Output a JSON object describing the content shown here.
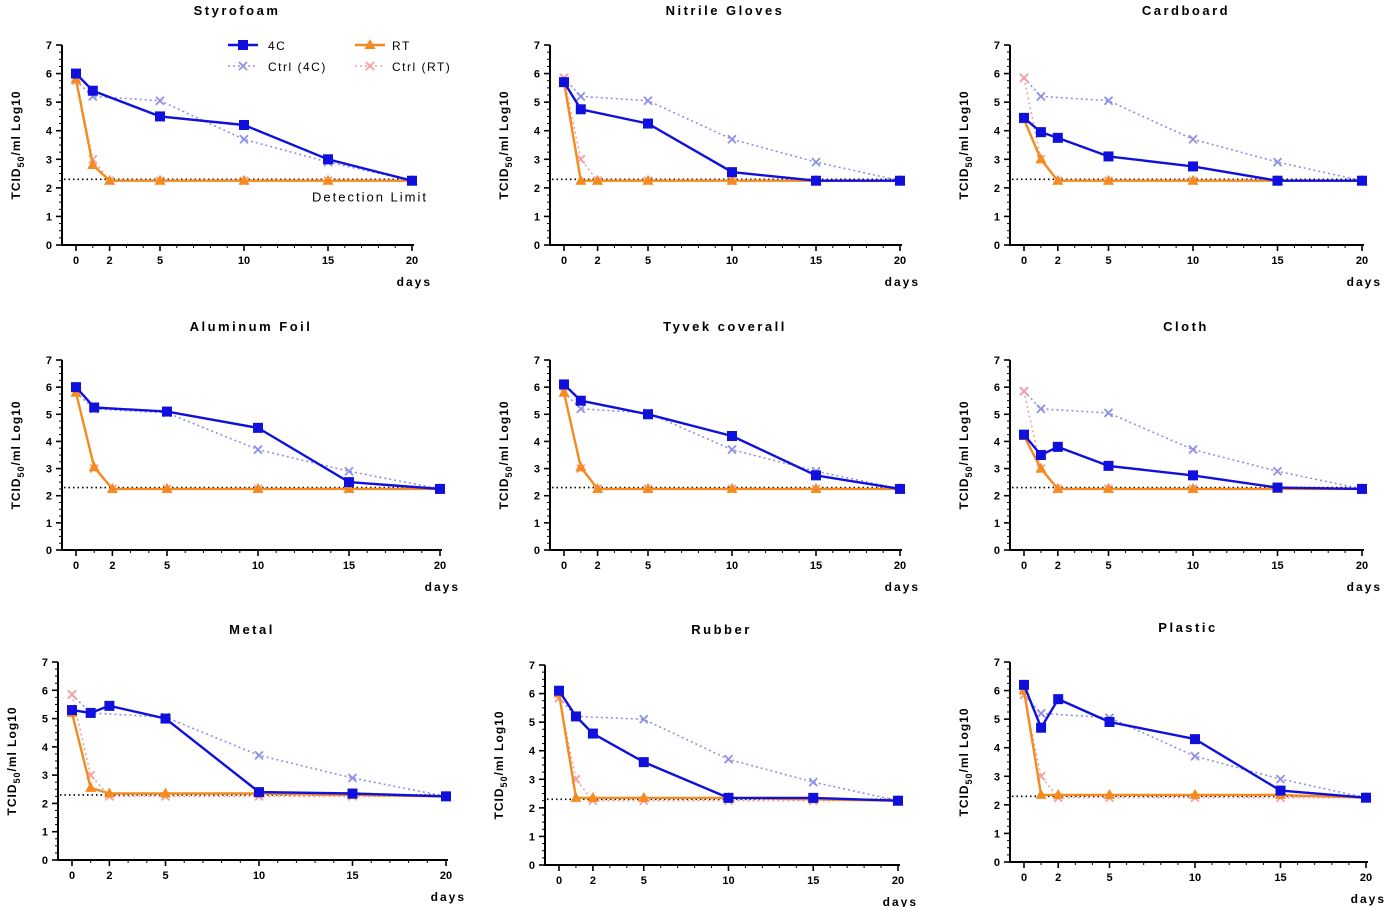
{
  "colors": {
    "c4": "#1010dd",
    "rt": "#f58a1f",
    "ctrl4": "#9090e8",
    "ctrlrt": "#f4a0a0"
  },
  "legend": {
    "c4": "4C",
    "rt": "RT",
    "ctrl4": "Ctrl (4C)",
    "ctrlrt": "Ctrl (RT)"
  },
  "annotation": "Detection Limit",
  "chart_data": [
    {
      "type": "line",
      "title": "Styrofoam",
      "xlabel": "days",
      "ylabel": "TCID50/ml Log10",
      "x": [
        0,
        1,
        2,
        5,
        10,
        15,
        20
      ],
      "ylim": [
        0,
        7
      ],
      "xlim": [
        0,
        20
      ],
      "detection_limit": 2.3,
      "series": [
        {
          "name": "4C",
          "values": [
            6.0,
            5.4,
            null,
            4.5,
            4.2,
            3.0,
            2.25
          ]
        },
        {
          "name": "RT",
          "values": [
            5.8,
            2.8,
            2.25,
            2.25,
            2.25,
            2.25,
            2.25
          ]
        },
        {
          "name": "Ctrl (4C)",
          "values": [
            5.75,
            5.2,
            null,
            5.05,
            3.7,
            2.9,
            2.25
          ]
        },
        {
          "name": "Ctrl (RT)",
          "values": [
            5.75,
            3.0,
            2.25,
            2.25,
            2.25,
            2.25,
            2.25
          ]
        }
      ]
    },
    {
      "type": "line",
      "title": "Nitrile Gloves",
      "xlabel": "days",
      "ylabel": "TCID50/ml Log10",
      "x": [
        0,
        1,
        2,
        5,
        10,
        15,
        20
      ],
      "ylim": [
        0,
        7
      ],
      "xlim": [
        0,
        20
      ],
      "detection_limit": 2.3,
      "series": [
        {
          "name": "4C",
          "values": [
            5.7,
            4.75,
            null,
            4.25,
            2.55,
            2.25,
            2.25
          ]
        },
        {
          "name": "RT",
          "values": [
            5.7,
            2.25,
            2.25,
            2.25,
            2.25,
            2.25,
            2.25
          ]
        },
        {
          "name": "Ctrl (4C)",
          "values": [
            5.85,
            5.2,
            null,
            5.05,
            3.7,
            2.9,
            2.25
          ]
        },
        {
          "name": "Ctrl (RT)",
          "values": [
            5.85,
            3.0,
            2.25,
            2.25,
            2.25,
            2.25,
            2.25
          ]
        }
      ]
    },
    {
      "type": "line",
      "title": "Cardboard",
      "xlabel": "days",
      "ylabel": "TCID50/ml Log10",
      "x": [
        0,
        1,
        2,
        5,
        10,
        15,
        20
      ],
      "ylim": [
        0,
        7
      ],
      "xlim": [
        0,
        20
      ],
      "detection_limit": 2.3,
      "series": [
        {
          "name": "4C",
          "values": [
            4.45,
            3.95,
            3.75,
            3.1,
            2.75,
            2.25,
            2.25
          ]
        },
        {
          "name": "RT",
          "values": [
            4.4,
            3.0,
            2.25,
            2.25,
            2.25,
            2.25,
            2.25
          ]
        },
        {
          "name": "Ctrl (4C)",
          "values": [
            5.85,
            5.2,
            null,
            5.05,
            3.7,
            2.9,
            2.25
          ]
        },
        {
          "name": "Ctrl (RT)",
          "values": [
            5.85,
            3.0,
            2.25,
            2.25,
            2.25,
            2.25,
            2.25
          ]
        }
      ]
    },
    {
      "type": "line",
      "title": "Aluminum Foil",
      "xlabel": "days",
      "ylabel": "TCID50/ml Log10",
      "x": [
        0,
        1,
        2,
        5,
        10,
        15,
        20
      ],
      "ylim": [
        0,
        7
      ],
      "xlim": [
        0,
        20
      ],
      "detection_limit": 2.3,
      "series": [
        {
          "name": "4C",
          "values": [
            6.0,
            5.25,
            null,
            5.1,
            4.5,
            2.5,
            2.25
          ]
        },
        {
          "name": "RT",
          "values": [
            5.8,
            3.05,
            2.25,
            2.25,
            2.25,
            2.25,
            2.25
          ]
        },
        {
          "name": "Ctrl (4C)",
          "values": [
            5.8,
            5.2,
            null,
            5.05,
            3.7,
            2.9,
            2.25
          ]
        },
        {
          "name": "Ctrl (RT)",
          "values": [
            5.8,
            3.0,
            2.25,
            2.25,
            2.25,
            2.25,
            2.25
          ]
        }
      ]
    },
    {
      "type": "line",
      "title": "Tyvek coverall",
      "xlabel": "days",
      "ylabel": "TCID50/ml Log10",
      "x": [
        0,
        1,
        2,
        5,
        10,
        15,
        20
      ],
      "ylim": [
        0,
        7
      ],
      "xlim": [
        0,
        20
      ],
      "detection_limit": 2.3,
      "series": [
        {
          "name": "4C",
          "values": [
            6.1,
            5.5,
            null,
            5.0,
            4.2,
            2.75,
            2.25
          ]
        },
        {
          "name": "RT",
          "values": [
            5.8,
            3.05,
            2.25,
            2.25,
            2.25,
            2.25,
            2.25
          ]
        },
        {
          "name": "Ctrl (4C)",
          "values": [
            5.8,
            5.2,
            null,
            5.05,
            3.7,
            2.9,
            2.25
          ]
        },
        {
          "name": "Ctrl (RT)",
          "values": [
            5.8,
            3.0,
            2.25,
            2.25,
            2.25,
            2.25,
            2.25
          ]
        }
      ]
    },
    {
      "type": "line",
      "title": "Cloth",
      "xlabel": "days",
      "ylabel": "TCID50/ml Log10",
      "x": [
        0,
        1,
        2,
        5,
        10,
        15,
        20
      ],
      "ylim": [
        0,
        7
      ],
      "xlim": [
        0,
        20
      ],
      "detection_limit": 2.3,
      "series": [
        {
          "name": "4C",
          "values": [
            4.25,
            3.5,
            3.8,
            3.1,
            2.75,
            2.3,
            2.25
          ]
        },
        {
          "name": "RT",
          "values": [
            4.2,
            3.0,
            2.25,
            2.25,
            2.25,
            2.25,
            2.25
          ]
        },
        {
          "name": "Ctrl (4C)",
          "values": [
            5.85,
            5.2,
            null,
            5.05,
            3.7,
            2.9,
            2.25
          ]
        },
        {
          "name": "Ctrl (RT)",
          "values": [
            5.85,
            3.0,
            2.25,
            2.25,
            2.25,
            2.25,
            2.25
          ]
        }
      ]
    },
    {
      "type": "line",
      "title": "Metal",
      "xlabel": "days",
      "ylabel": "TCID50/ml Log10",
      "x": [
        0,
        1,
        2,
        5,
        10,
        15,
        20
      ],
      "ylim": [
        0,
        7
      ],
      "xlim": [
        0,
        20
      ],
      "detection_limit": 2.3,
      "series": [
        {
          "name": "4C",
          "values": [
            5.3,
            5.2,
            5.45,
            5.0,
            2.4,
            2.35,
            2.25
          ]
        },
        {
          "name": "RT",
          "values": [
            5.2,
            2.55,
            2.35,
            2.35,
            2.35,
            2.3,
            2.25
          ]
        },
        {
          "name": "Ctrl (4C)",
          "values": [
            5.85,
            5.2,
            null,
            5.05,
            3.7,
            2.9,
            2.25
          ]
        },
        {
          "name": "Ctrl (RT)",
          "values": [
            5.85,
            3.0,
            2.25,
            2.25,
            2.25,
            2.25,
            2.25
          ]
        }
      ]
    },
    {
      "type": "line",
      "title": "Rubber",
      "xlabel": "days",
      "ylabel": "TCID50/ml Log10",
      "x": [
        0,
        1,
        2,
        5,
        10,
        15,
        20
      ],
      "ylim": [
        0,
        7
      ],
      "xlim": [
        0,
        20
      ],
      "detection_limit": 2.3,
      "series": [
        {
          "name": "4C",
          "values": [
            6.1,
            5.2,
            4.6,
            3.6,
            2.35,
            2.35,
            2.25
          ]
        },
        {
          "name": "RT",
          "values": [
            6.0,
            2.35,
            2.35,
            2.35,
            2.35,
            2.3,
            2.25
          ]
        },
        {
          "name": "Ctrl (4C)",
          "values": [
            5.85,
            5.2,
            null,
            5.1,
            3.7,
            2.9,
            2.25
          ]
        },
        {
          "name": "Ctrl (RT)",
          "values": [
            5.85,
            3.0,
            2.25,
            2.25,
            2.25,
            2.25,
            2.25
          ]
        }
      ]
    },
    {
      "type": "line",
      "title": "Plastic",
      "xlabel": "days",
      "ylabel": "TCID50/ml Log10",
      "x": [
        0,
        1,
        2,
        5,
        10,
        15,
        20
      ],
      "ylim": [
        0,
        7
      ],
      "xlim": [
        0,
        20
      ],
      "detection_limit": 2.3,
      "series": [
        {
          "name": "4C",
          "values": [
            6.2,
            4.7,
            5.7,
            4.9,
            4.3,
            2.5,
            2.25
          ]
        },
        {
          "name": "RT",
          "values": [
            6.0,
            2.35,
            2.35,
            2.35,
            2.35,
            2.35,
            2.25
          ]
        },
        {
          "name": "Ctrl (4C)",
          "values": [
            5.85,
            5.2,
            null,
            5.05,
            3.7,
            2.9,
            2.25
          ]
        },
        {
          "name": "Ctrl (RT)",
          "values": [
            5.85,
            3.0,
            2.25,
            2.25,
            2.25,
            2.25,
            2.25
          ]
        }
      ]
    }
  ]
}
